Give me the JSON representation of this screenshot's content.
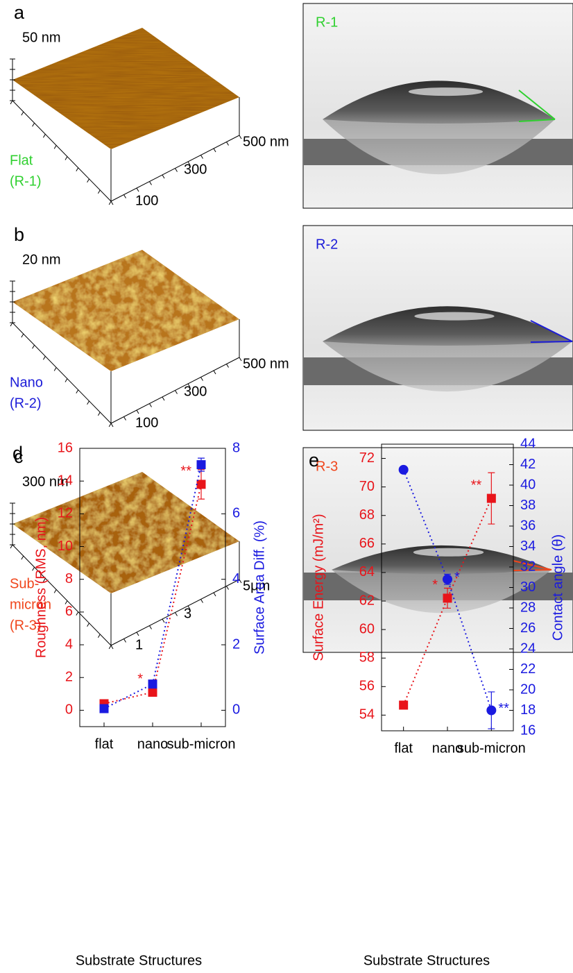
{
  "panels": [
    {
      "letter": "a",
      "height_label": "50 nm",
      "axis_labels": [
        "100",
        "300",
        "500 nm"
      ],
      "sample": [
        "Flat",
        "(R-1)"
      ],
      "color": "#2fd02f",
      "droplet": "R-1"
    },
    {
      "letter": "b",
      "height_label": "20 nm",
      "axis_labels": [
        "100",
        "300",
        "500 nm"
      ],
      "sample": [
        "Nano",
        "(R-2)"
      ],
      "color": "#1c1cd8",
      "droplet": "R-2"
    },
    {
      "letter": "c",
      "height_label": "300 nm",
      "axis_labels": [
        "1",
        "3",
        "5μm"
      ],
      "sample": [
        "Sub-",
        "micron",
        "(R-3)"
      ],
      "color": "#f0461c",
      "droplet": "R-3"
    }
  ],
  "chart_data": [
    {
      "type": "line",
      "panel": "d",
      "categories": [
        "flat",
        "nano",
        "sub-micron"
      ],
      "xlabel": "Substrate Structures",
      "ylabel": "Roughness (RMS, nm)",
      "y2label": "Surface Area Diff. (%)",
      "ylim": [
        -1,
        16
      ],
      "yticks": [
        0,
        2,
        4,
        6,
        8,
        10,
        12,
        14,
        16
      ],
      "y2lim": [
        -0.5,
        8
      ],
      "y2ticks": [
        0,
        2,
        4,
        6,
        8
      ],
      "series": [
        {
          "color": "#e8141a",
          "marker": "square",
          "values": [
            0.4,
            1.1,
            13.8
          ],
          "errors": [
            null,
            null,
            0.9
          ],
          "point_labels": [
            null,
            "*",
            "**"
          ]
        },
        {
          "color": "#1a1ae0",
          "marker": "square",
          "axis": "y2",
          "values": [
            0.05,
            0.8,
            7.5
          ],
          "errors": [
            null,
            null,
            0.2
          ]
        }
      ]
    },
    {
      "type": "line",
      "panel": "e",
      "categories": [
        "flat",
        "nano",
        "sub-micron"
      ],
      "xlabel": "Substrate Structures",
      "ylabel": "Surface Energy (mJ/m²)",
      "y2label": "Contact angle (θ)",
      "ylim": [
        52.9,
        73
      ],
      "yticks": [
        54,
        56,
        58,
        60,
        62,
        64,
        66,
        68,
        70,
        72
      ],
      "y2lim": [
        16,
        44
      ],
      "y2ticks": [
        16,
        18,
        20,
        22,
        24,
        26,
        28,
        30,
        32,
        34,
        36,
        38,
        40,
        42,
        44
      ],
      "series": [
        {
          "color": "#e8141a",
          "marker": "square",
          "values": [
            54.7,
            62.2,
            69.2
          ],
          "errors": [
            null,
            0.7,
            1.8
          ],
          "point_labels": [
            null,
            "*",
            "**"
          ]
        },
        {
          "color": "#1a1ae0",
          "marker": "circle",
          "axis": "y2",
          "values": [
            41.5,
            30.8,
            18
          ],
          "errors": [
            null,
            0.5,
            1.8
          ],
          "point_labels": [
            null,
            "*",
            "**"
          ]
        }
      ]
    }
  ]
}
